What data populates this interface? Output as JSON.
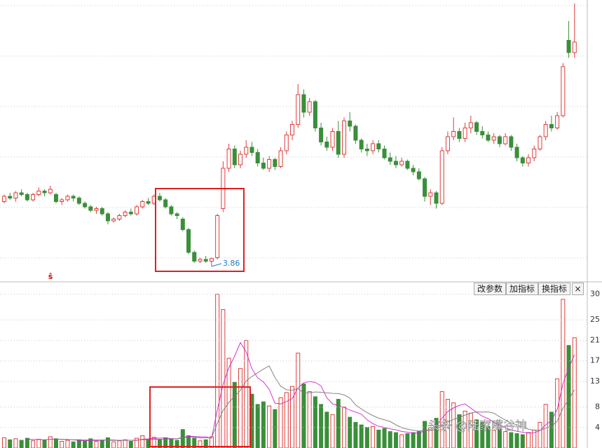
{
  "chart_data": {
    "type": "candlestick",
    "ylim": [
      3.7,
      6.9
    ],
    "low_label": 3.86,
    "marker": "ŝ",
    "buttons": [
      "改参数",
      "加指标",
      "换指标",
      "×"
    ],
    "watermark": "头条 @陆家嘴谷神",
    "up_color": "#e03c3c",
    "down_color": "#3a8f3a",
    "ohlc": [
      [
        4.6,
        4.68,
        4.58,
        4.66
      ],
      [
        4.66,
        4.7,
        4.62,
        4.64
      ],
      [
        4.64,
        4.72,
        4.6,
        4.7
      ],
      [
        4.7,
        4.74,
        4.66,
        4.68
      ],
      [
        4.68,
        4.7,
        4.6,
        4.62
      ],
      [
        4.62,
        4.7,
        4.6,
        4.68
      ],
      [
        4.68,
        4.76,
        4.66,
        4.72
      ],
      [
        4.72,
        4.74,
        4.66,
        4.7
      ],
      [
        4.7,
        4.78,
        4.68,
        4.74
      ],
      [
        4.68,
        4.7,
        4.58,
        4.6
      ],
      [
        4.6,
        4.64,
        4.56,
        4.62
      ],
      [
        4.62,
        4.68,
        4.6,
        4.66
      ],
      [
        4.66,
        4.68,
        4.6,
        4.64
      ],
      [
        4.64,
        4.66,
        4.56,
        4.58
      ],
      [
        4.58,
        4.6,
        4.52,
        4.54
      ],
      [
        4.54,
        4.56,
        4.48,
        4.5
      ],
      [
        4.5,
        4.54,
        4.46,
        4.52
      ],
      [
        4.52,
        4.54,
        4.44,
        4.46
      ],
      [
        4.46,
        4.48,
        4.34,
        4.38
      ],
      [
        4.38,
        4.42,
        4.36,
        4.4
      ],
      [
        4.4,
        4.46,
        4.38,
        4.44
      ],
      [
        4.44,
        4.5,
        4.42,
        4.48
      ],
      [
        4.48,
        4.52,
        4.44,
        4.46
      ],
      [
        4.46,
        4.56,
        4.44,
        4.54
      ],
      [
        4.54,
        4.62,
        4.52,
        4.6
      ],
      [
        4.6,
        4.64,
        4.56,
        4.58
      ],
      [
        4.58,
        4.68,
        4.56,
        4.66
      ],
      [
        4.66,
        4.7,
        4.6,
        4.62
      ],
      [
        4.62,
        4.64,
        4.52,
        4.54
      ],
      [
        4.54,
        4.56,
        4.44,
        4.46
      ],
      [
        4.46,
        4.48,
        4.4,
        4.44
      ],
      [
        4.4,
        4.42,
        4.26,
        4.28
      ],
      [
        4.28,
        4.3,
        4.0,
        4.02
      ],
      [
        4.02,
        4.04,
        3.9,
        3.92
      ],
      [
        3.92,
        3.96,
        3.9,
        3.94
      ],
      [
        3.94,
        3.98,
        3.9,
        3.92
      ],
      [
        3.92,
        3.96,
        3.86,
        3.95
      ],
      [
        3.96,
        4.46,
        3.94,
        4.44
      ],
      [
        4.52,
        5.06,
        4.48,
        4.98
      ],
      [
        4.98,
        5.26,
        4.94,
        5.2
      ],
      [
        5.2,
        5.24,
        4.98,
        5.02
      ],
      [
        5.02,
        5.18,
        4.98,
        5.14
      ],
      [
        5.14,
        5.3,
        5.1,
        5.22
      ],
      [
        5.22,
        5.28,
        5.12,
        5.16
      ],
      [
        5.16,
        5.2,
        5.0,
        5.04
      ],
      [
        5.04,
        5.1,
        4.96,
        4.98
      ],
      [
        4.98,
        5.12,
        4.94,
        5.08
      ],
      [
        5.08,
        5.1,
        4.96,
        5.0
      ],
      [
        5.0,
        5.22,
        4.98,
        5.18
      ],
      [
        5.18,
        5.4,
        5.14,
        5.36
      ],
      [
        5.36,
        5.52,
        5.3,
        5.48
      ],
      [
        5.48,
        5.94,
        5.44,
        5.82
      ],
      [
        5.82,
        5.88,
        5.56,
        5.62
      ],
      [
        5.62,
        5.78,
        5.58,
        5.74
      ],
      [
        5.74,
        5.76,
        5.4,
        5.44
      ],
      [
        5.44,
        5.5,
        5.24,
        5.28
      ],
      [
        5.28,
        5.34,
        5.18,
        5.22
      ],
      [
        5.22,
        5.44,
        5.18,
        5.4
      ],
      [
        5.4,
        5.52,
        5.1,
        5.14
      ],
      [
        5.14,
        5.56,
        5.1,
        5.52
      ],
      [
        5.52,
        5.62,
        5.4,
        5.46
      ],
      [
        5.46,
        5.48,
        5.26,
        5.3
      ],
      [
        5.3,
        5.32,
        5.16,
        5.2
      ],
      [
        5.2,
        5.26,
        5.12,
        5.18
      ],
      [
        5.18,
        5.3,
        5.14,
        5.26
      ],
      [
        5.26,
        5.3,
        5.16,
        5.2
      ],
      [
        5.2,
        5.24,
        5.08,
        5.1
      ],
      [
        5.1,
        5.16,
        5.02,
        5.06
      ],
      [
        5.06,
        5.12,
        4.98,
        5.02
      ],
      [
        5.02,
        5.1,
        5.0,
        5.06
      ],
      [
        5.06,
        5.08,
        4.96,
        4.98
      ],
      [
        4.98,
        5.02,
        4.9,
        4.94
      ],
      [
        4.94,
        4.98,
        4.84,
        4.86
      ],
      [
        4.86,
        4.88,
        4.6,
        4.66
      ],
      [
        4.66,
        4.74,
        4.56,
        4.7
      ],
      [
        4.7,
        4.72,
        4.52,
        4.58
      ],
      [
        4.58,
        5.22,
        4.56,
        5.18
      ],
      [
        5.18,
        5.4,
        5.14,
        5.34
      ],
      [
        5.34,
        5.56,
        5.3,
        5.4
      ],
      [
        5.4,
        5.44,
        5.28,
        5.32
      ],
      [
        5.32,
        5.5,
        5.28,
        5.44
      ],
      [
        5.44,
        5.58,
        5.38,
        5.5
      ],
      [
        5.5,
        5.52,
        5.36,
        5.4
      ],
      [
        5.4,
        5.46,
        5.32,
        5.36
      ],
      [
        5.36,
        5.4,
        5.28,
        5.3
      ],
      [
        5.3,
        5.38,
        5.26,
        5.34
      ],
      [
        5.34,
        5.36,
        5.22,
        5.26
      ],
      [
        5.26,
        5.38,
        5.24,
        5.34
      ],
      [
        5.34,
        5.36,
        5.18,
        5.22
      ],
      [
        5.22,
        5.26,
        5.06,
        5.1
      ],
      [
        5.1,
        5.12,
        5.0,
        5.04
      ],
      [
        5.04,
        5.14,
        5.0,
        5.1
      ],
      [
        5.1,
        5.24,
        5.06,
        5.2
      ],
      [
        5.2,
        5.36,
        5.18,
        5.34
      ],
      [
        5.34,
        5.52,
        5.3,
        5.48
      ],
      [
        5.48,
        5.58,
        5.4,
        5.44
      ],
      [
        5.44,
        5.62,
        5.42,
        5.58
      ],
      [
        5.58,
        6.18,
        5.56,
        6.14
      ],
      [
        6.44,
        6.66,
        6.24,
        6.3
      ],
      [
        6.3,
        6.86,
        6.24,
        6.42
      ]
    ],
    "volume": [
      2.0,
      1.6,
      1.8,
      1.5,
      1.9,
      1.4,
      1.7,
      1.5,
      2.2,
      1.8,
      1.3,
      1.5,
      1.2,
      1.6,
      1.4,
      1.8,
      1.3,
      1.5,
      2.0,
      1.2,
      1.4,
      1.6,
      1.3,
      1.9,
      2.4,
      1.7,
      2.1,
      1.6,
      2.0,
      1.8,
      1.5,
      3.6,
      2.4,
      1.9,
      1.4,
      1.6,
      2.2,
      30.0,
      27.0,
      17.5,
      12.8,
      15.5,
      21.0,
      10.5,
      8.5,
      9.0,
      8.2,
      7.5,
      9.8,
      10.8,
      12.0,
      18.5,
      12.5,
      11.0,
      10.0,
      8.5,
      7.0,
      6.5,
      9.5,
      8.0,
      6.0,
      5.0,
      4.5,
      4.0,
      4.2,
      3.5,
      3.8,
      3.2,
      3.0,
      2.6,
      2.8,
      3.0,
      3.2,
      5.2,
      4.0,
      5.8,
      11.0,
      9.5,
      8.8,
      6.5,
      7.2,
      6.8,
      5.5,
      5.0,
      4.2,
      3.5,
      3.8,
      3.2,
      3.0,
      2.8,
      2.6,
      3.0,
      3.5,
      5.0,
      8.5,
      7.0,
      13.5,
      29.0,
      20.0,
      21.5
    ],
    "volume_ylim": [
      0,
      32
    ],
    "volume_yticks": [
      30,
      25,
      21,
      17,
      13,
      8,
      4
    ]
  }
}
